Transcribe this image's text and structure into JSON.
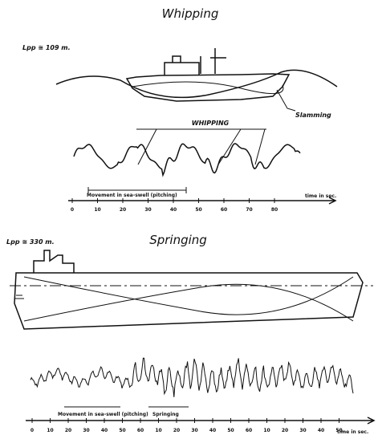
{
  "whipping": {
    "title": "Whipping",
    "length": "Lpp ≅ 109 m.",
    "slamming_label": "Slamming",
    "whipping_label": "WHIPPING",
    "movement_label": "Movement in sea-swell (pitching)",
    "axis_label": "time in sec.",
    "axis_ticks": [
      "0",
      "10",
      "20",
      "30",
      "40",
      "50",
      "60",
      "70",
      "80"
    ]
  },
  "springing": {
    "title": "Springing",
    "length": "Lpp ≅ 330 m.",
    "movement_label": "Movement in sea-swell (pitching)",
    "springing_label": "Springing",
    "axis_label": "time in sec.",
    "axis_ticks": [
      "0",
      "10",
      "20",
      "30",
      "40",
      "50",
      "60",
      "10",
      "20",
      "30",
      "40",
      "50",
      "60",
      "10",
      "20",
      "30",
      "40",
      "50"
    ]
  }
}
